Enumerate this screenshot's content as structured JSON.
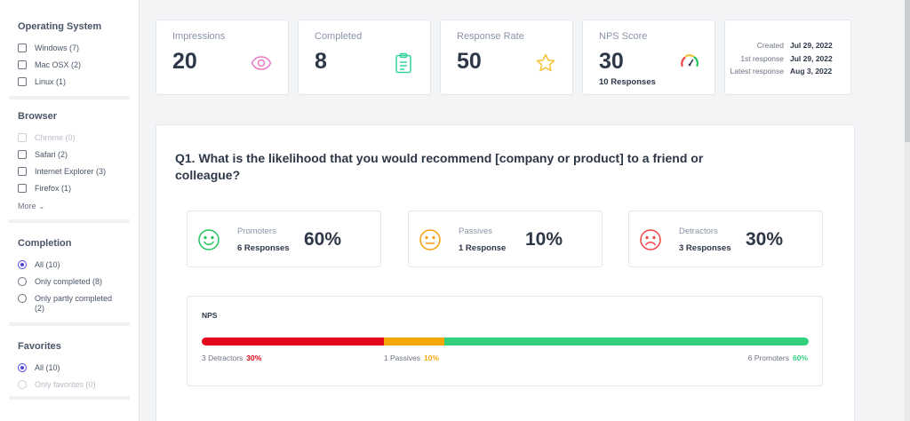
{
  "sidebar": {
    "groups": [
      {
        "title": "Operating System",
        "options": [
          {
            "label": "Windows (7)"
          },
          {
            "label": "Mac OSX (2)"
          },
          {
            "label": "Linux (1)"
          }
        ]
      },
      {
        "title": "Browser",
        "options": [
          {
            "label": "Chrome (0)"
          },
          {
            "label": "Safari (2)"
          },
          {
            "label": "Internet Explorer (3)"
          },
          {
            "label": "Firefox (1)"
          }
        ],
        "more": "More"
      },
      {
        "title": "Completion",
        "options": [
          {
            "label": "All (10)"
          },
          {
            "label": "Only completed (8)"
          },
          {
            "label": "Only partly completed (2)"
          }
        ]
      },
      {
        "title": "Favorites",
        "options": [
          {
            "label": "All (10)"
          },
          {
            "label": "Only favorites (0)"
          }
        ]
      }
    ]
  },
  "stats": {
    "impressions": {
      "label": "Impressions",
      "value": "20",
      "icon": "eye-icon",
      "color": "#e879c8"
    },
    "completed": {
      "label": "Completed",
      "value": "8",
      "icon": "clipboard-icon",
      "color": "#34d399"
    },
    "response_rate": {
      "label": "Response Rate",
      "value": "50",
      "icon": "star-icon",
      "color": "#f6c232"
    },
    "nps": {
      "label": "NPS Score",
      "value": "30",
      "sub": "10 Responses",
      "icon": "gauge-icon"
    }
  },
  "dates": {
    "created_label": "Created",
    "created": "Jul 29, 2022",
    "first_label": "1st response",
    "first": "Jul 29, 2022",
    "latest_label": "Latest response",
    "latest": "Aug 3, 2022"
  },
  "question": {
    "text": "Q1. What is the likelihood that you would recommend [company or product] to a friend or colleague?"
  },
  "segments": {
    "promoters": {
      "name": "Promoters",
      "responses": "6 Responses",
      "pct": "60%",
      "color": "#22c55e",
      "icon": "smile-icon"
    },
    "passives": {
      "name": "Passives",
      "responses": "1 Response",
      "pct": "10%",
      "color": "#f59e0b",
      "icon": "neutral-face-icon"
    },
    "detractors": {
      "name": "Detractors",
      "responses": "3 Responses",
      "pct": "30%",
      "color": "#ef4444",
      "icon": "frown-icon"
    }
  },
  "nps_bar": {
    "title": "NPS",
    "detractors": {
      "label": "3 Detractors",
      "pct": "30%",
      "value": 30,
      "color": "#e3071b"
    },
    "passives": {
      "label": "1 Passives",
      "pct": "10%",
      "value": 10,
      "color": "#f5a70a"
    },
    "promoters": {
      "label": "6 Promoters",
      "pct": "60%",
      "value": 60,
      "color": "#33d17e"
    }
  }
}
